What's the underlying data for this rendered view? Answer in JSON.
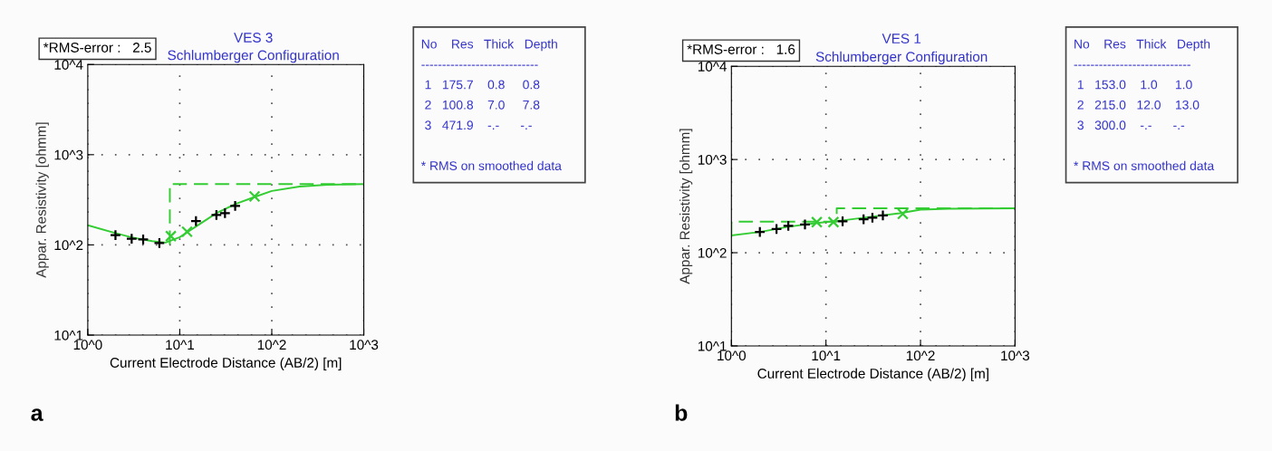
{
  "chart_data": [
    {
      "type": "line",
      "title": "VES 3",
      "subtitle": "Schlumberger Configuration",
      "xlabel": "Current Electrode Distance (AB/2) [m]",
      "ylabel": "Appar. Resistivity [ohmm]",
      "log": "xy",
      "grid": true,
      "legend": false,
      "xlim": [
        1,
        1000
      ],
      "ylim": [
        10,
        10000
      ],
      "xticks": [
        {
          "value": 1,
          "label": "10^0"
        },
        {
          "value": 10,
          "label": "10^1"
        },
        {
          "value": 100,
          "label": "10^2"
        },
        {
          "value": 1000,
          "label": "10^3"
        }
      ],
      "yticks": [
        {
          "value": 10,
          "label": "10^1"
        },
        {
          "value": 100,
          "label": "10^2"
        },
        {
          "value": 1000,
          "label": "10^3"
        },
        {
          "value": 10000,
          "label": "10^4"
        }
      ],
      "series": [
        {
          "type": "line",
          "color": "#33cc33",
          "line_style": "dashed",
          "marker": "none",
          "x": [
            7.8,
            7.8,
            1000
          ],
          "values": [
            100.8,
            471.9,
            471.9
          ]
        },
        {
          "type": "line",
          "color": "#33cc33",
          "line_style": "solid",
          "marker": "none",
          "x": [
            1,
            2,
            3,
            5,
            7,
            10,
            15,
            25,
            40,
            65,
            100,
            200,
            400,
            1000
          ],
          "values": [
            165,
            135,
            121,
            110,
            106,
            122,
            160,
            225,
            283,
            340,
            396,
            443,
            465,
            472
          ]
        },
        {
          "type": "scatter",
          "color": "#33cc33",
          "marker": "cross",
          "x": [
            8,
            12,
            65
          ],
          "values": [
            125,
            140,
            345
          ]
        },
        {
          "type": "scatter",
          "color": "#000000",
          "marker": "plus",
          "x": [
            2,
            3,
            4,
            6,
            15,
            25,
            31,
            40
          ],
          "values": [
            128,
            117,
            115,
            105,
            184,
            215,
            225,
            270
          ]
        }
      ],
      "annotations": [
        "*RMS-error :   2.5",
        "No    Res   Thick   Depth",
        "----------------------------",
        " 1   175.7    0.8     0.8",
        " 2   100.8    7.0     7.8",
        " 3   471.9    -.-      -.-",
        "* RMS on smoothed data",
        "a"
      ]
    },
    {
      "type": "line",
      "title": "VES 1",
      "subtitle": "Schlumberger Configuration",
      "xlabel": "Current Electrode Distance (AB/2) [m]",
      "ylabel": "Appar. Resistivity [ohmm]",
      "log": "xy",
      "grid": true,
      "legend": false,
      "xlim": [
        1,
        1000
      ],
      "ylim": [
        10,
        10000
      ],
      "xticks": [
        {
          "value": 1,
          "label": "10^0"
        },
        {
          "value": 10,
          "label": "10^1"
        },
        {
          "value": 100,
          "label": "10^2"
        },
        {
          "value": 1000,
          "label": "10^3"
        }
      ],
      "yticks": [
        {
          "value": 10,
          "label": "10^1"
        },
        {
          "value": 100,
          "label": "10^2"
        },
        {
          "value": 1000,
          "label": "10^3"
        },
        {
          "value": 10000,
          "label": "10^4"
        }
      ],
      "series": [
        {
          "type": "line",
          "color": "#33cc33",
          "line_style": "dashed",
          "marker": "none",
          "x": [
            1,
            1,
            13,
            13,
            1000
          ],
          "values": [
            153,
            215,
            215,
            300,
            300
          ]
        },
        {
          "type": "line",
          "color": "#33cc33",
          "line_style": "solid",
          "marker": "none",
          "x": [
            1,
            2,
            4,
            8,
            15,
            30,
            60,
            100,
            200,
            1000
          ],
          "values": [
            153,
            167,
            190,
            208,
            222,
            243,
            265,
            290,
            296,
            300
          ]
        },
        {
          "type": "scatter",
          "color": "#33cc33",
          "marker": "cross",
          "x": [
            8,
            12,
            65
          ],
          "values": [
            213,
            213,
            261
          ]
        },
        {
          "type": "scatter",
          "color": "#000000",
          "marker": "plus",
          "x": [
            2,
            3,
            4,
            6,
            15,
            25,
            31,
            40
          ],
          "values": [
            167,
            180,
            194,
            201,
            217,
            228,
            238,
            251
          ]
        }
      ],
      "annotations": [
        "*RMS-error :   1.6",
        "No    Res   Thick   Depth",
        "----------------------------",
        " 1   153.0    1.0     1.0",
        " 2   215.0   12.0    13.0",
        " 3   300.0    -.-      -.-",
        "* RMS on smoothed data",
        "b"
      ]
    }
  ]
}
